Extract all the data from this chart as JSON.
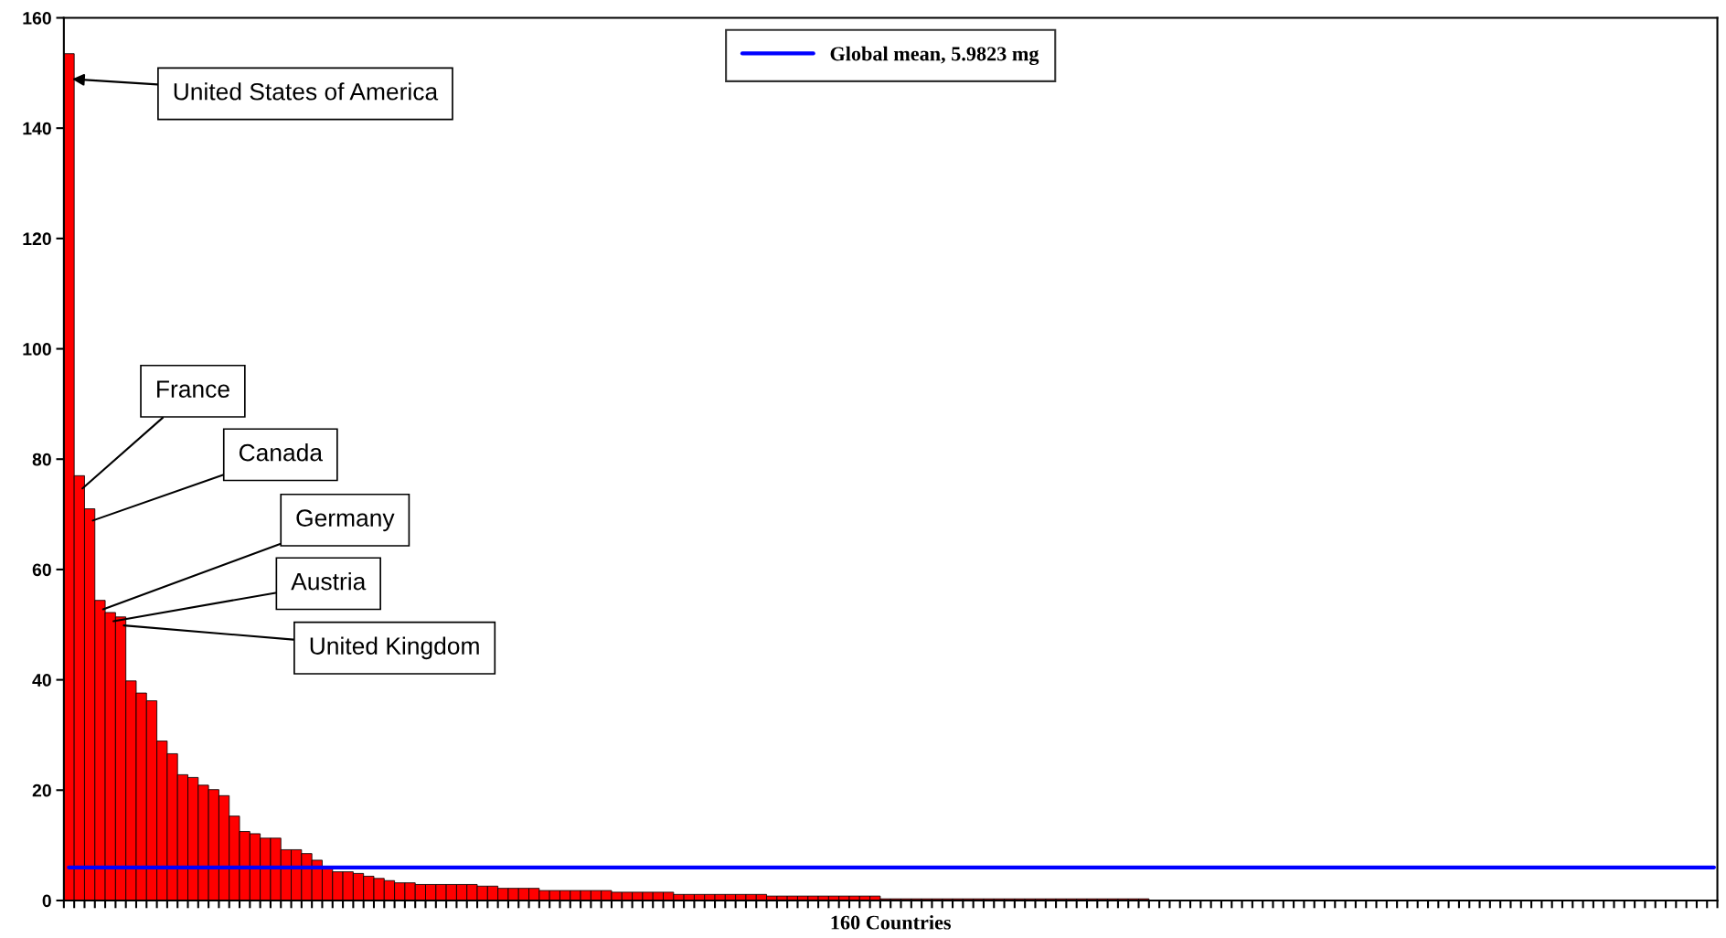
{
  "chart_data": {
    "type": "bar",
    "xlabel": "160 Countries",
    "categories": [
      null,
      null,
      null,
      null,
      null,
      null,
      null,
      null,
      null,
      null,
      null,
      null,
      null,
      null,
      null,
      null,
      null,
      null,
      null,
      null,
      null,
      null,
      null,
      null,
      null,
      null,
      null,
      null,
      null,
      null,
      null,
      null,
      null,
      null,
      null,
      null,
      null,
      null,
      null,
      null,
      null,
      null,
      null,
      null,
      null,
      null,
      null,
      null,
      null,
      null,
      null,
      null,
      null,
      null,
      null,
      null,
      null,
      null,
      null,
      null,
      null,
      null,
      null,
      null,
      null,
      null,
      null,
      null,
      null,
      null,
      null,
      null,
      null,
      null,
      null,
      null,
      null,
      null,
      null,
      null,
      null,
      null,
      null,
      null,
      null,
      null,
      null,
      null,
      null,
      null,
      null,
      null,
      null,
      null,
      null,
      null,
      null,
      null,
      null,
      null,
      null,
      null,
      null,
      null,
      null,
      null,
      null,
      null,
      null,
      null,
      null,
      null,
      null,
      null,
      null,
      null,
      null,
      null,
      null,
      null,
      null,
      null,
      null,
      null,
      null,
      null,
      null,
      null,
      null,
      null,
      null,
      null,
      null,
      null,
      null,
      null,
      null,
      null,
      null,
      null,
      null,
      null,
      null,
      null,
      null,
      null,
      null,
      null,
      null,
      null,
      null,
      null,
      null,
      null,
      null,
      null,
      null,
      null,
      null,
      null
    ],
    "values": [
      153.5,
      77,
      71,
      54.4,
      52.2,
      51.4,
      39.8,
      37.6,
      36.2,
      28.9,
      26.6,
      22.8,
      22.3,
      20.9,
      20.1,
      19,
      15.3,
      12.5,
      12.1,
      11.3,
      11.3,
      9.2,
      9.2,
      8.5,
      7.3,
      5.8,
      5.2,
      5.2,
      4.9,
      4.4,
      4.0,
      3.6,
      3.2,
      3.2,
      2.9,
      2.9,
      2.9,
      2.9,
      2.9,
      2.9,
      2.6,
      2.6,
      2.2,
      2.2,
      2.2,
      2.2,
      1.8,
      1.8,
      1.8,
      1.8,
      1.8,
      1.8,
      1.8,
      1.5,
      1.5,
      1.5,
      1.5,
      1.5,
      1.5,
      1.1,
      1.1,
      1.1,
      1.1,
      1.1,
      1.1,
      1.1,
      1.1,
      1.1,
      0.8,
      0.8,
      0.8,
      0.8,
      0.8,
      0.8,
      0.8,
      0.8,
      0.8,
      0.8,
      0.8,
      0.3,
      0.3,
      0.3,
      0.3,
      0.3,
      0.3,
      0.3,
      0.3,
      0.3,
      0.3,
      0.3,
      0.3,
      0.3,
      0.3,
      0.3,
      0.3,
      0.3,
      0.3,
      0.3,
      0.3,
      0.3,
      0.3,
      0.3,
      0.3,
      0.3,
      0.3,
      0,
      0,
      0,
      0,
      0,
      0,
      0,
      0,
      0,
      0,
      0,
      0,
      0,
      0,
      0,
      0,
      0,
      0,
      0,
      0,
      0,
      0,
      0,
      0,
      0,
      0,
      0,
      0,
      0,
      0,
      0,
      0,
      0,
      0,
      0,
      0,
      0,
      0,
      0,
      0,
      0,
      0,
      0,
      0,
      0,
      0,
      0,
      0,
      0,
      0,
      0,
      0,
      0,
      0,
      0
    ],
    "color": "#ff0000",
    "ylim": [
      0,
      160
    ],
    "yticks": [
      0,
      20,
      40,
      60,
      80,
      100,
      120,
      140,
      160
    ],
    "grid": false,
    "legend": "top",
    "ref_lines": [
      {
        "axis": "y",
        "value": 5.9823,
        "label": "Global mean, 5.9823 mg",
        "color": "#0000ff"
      }
    ],
    "annotations": [
      "United States of America",
      "France",
      "Canada",
      "Germany",
      "Austria",
      "United Kingdom"
    ]
  }
}
